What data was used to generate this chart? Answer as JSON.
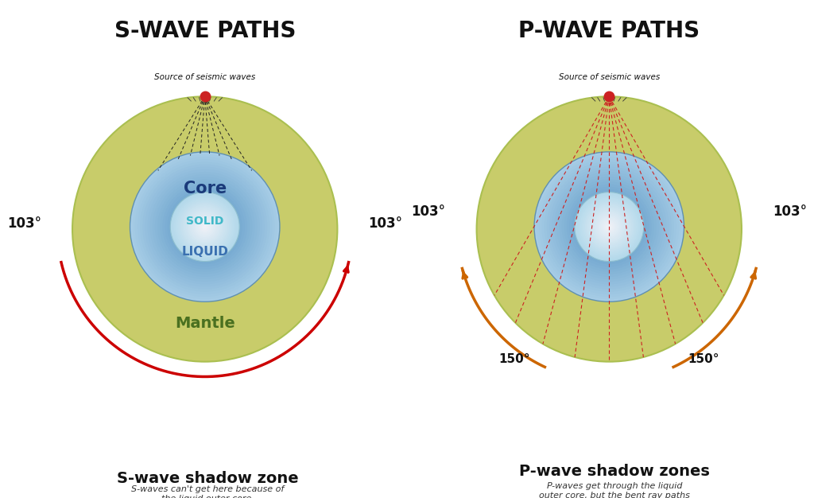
{
  "bg_color": "#ffffff",
  "s_wave_title": "S-WAVE PATHS",
  "p_wave_title": "P-WAVE PATHS",
  "source_label": "Source of seismic waves",
  "s_shadow_title": "S-wave shadow zone",
  "s_shadow_desc": "S-waves can't get here because of\nthe liquid outer core.",
  "p_shadow_title": "P-wave shadow zones",
  "p_shadow_desc": "P-waves get through the liquid\nouter core, but the bent ray paths\nleave gaps.",
  "mantle_color": "#c8cc6a",
  "mantle_edge_color": "#7a9a3a",
  "outer_core_color_top": "#6ab0d8",
  "outer_core_color_bot": "#4080b8",
  "inner_core_color": "#c8eef8",
  "core_label_color": "#1a3a7a",
  "solid_label_color": "#40b8c8",
  "liquid_label_color": "#3a70b0",
  "mantle_label_color": "#4a7020",
  "ray_color_black": "#333333",
  "ray_color_red": "#cc2222",
  "shadow_arc_color_s": "#cc0000",
  "shadow_arc_color_p": "#cc6600",
  "angle_103": "103°",
  "angle_150": "150°"
}
